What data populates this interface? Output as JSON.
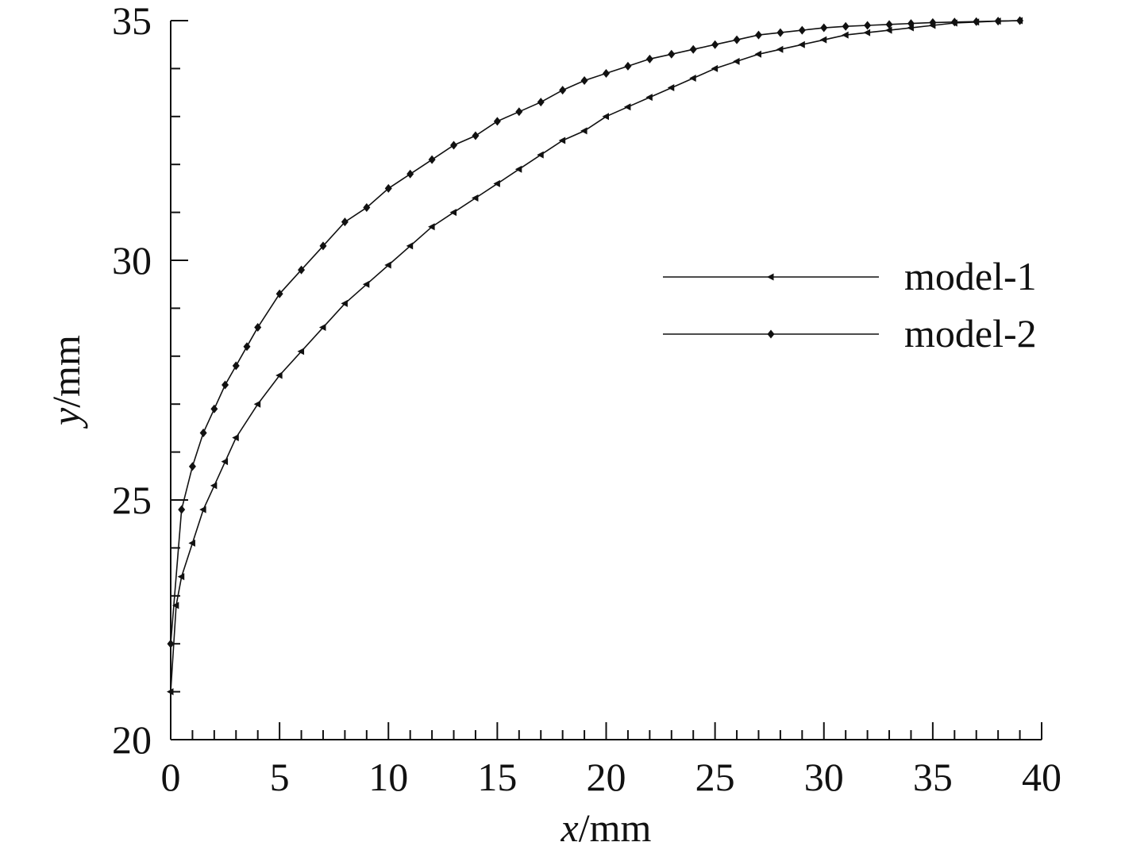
{
  "chart_data": {
    "type": "line",
    "title": "",
    "xlabel_var": "x",
    "xlabel_unit": "/mm",
    "ylabel_var": "y",
    "ylabel_unit": "/mm",
    "xlim": [
      0,
      40
    ],
    "ylim": [
      20,
      35
    ],
    "xticks": [
      "0",
      "5",
      "10",
      "15",
      "20",
      "25",
      "30",
      "35",
      "40"
    ],
    "yticks": [
      "20",
      "25",
      "30",
      "35"
    ],
    "grid": false,
    "legend_position": "center-right",
    "series": [
      {
        "name": "model-1",
        "marker": "triangle-left",
        "color": "#111111",
        "x": [
          0,
          0.25,
          0.5,
          1,
          1.5,
          2,
          2.5,
          3,
          4,
          5,
          6,
          7,
          8,
          9,
          10,
          11,
          12,
          13,
          14,
          15,
          16,
          17,
          18,
          19,
          20,
          21,
          22,
          23,
          24,
          25,
          26,
          27,
          28,
          29,
          30,
          31,
          32,
          33,
          34,
          35,
          36,
          37,
          38,
          39
        ],
        "y": [
          21,
          22.8,
          23.4,
          24.1,
          24.8,
          25.3,
          25.8,
          26.3,
          27.0,
          27.6,
          28.1,
          28.6,
          29.1,
          29.5,
          29.9,
          30.3,
          30.7,
          31.0,
          31.3,
          31.6,
          31.9,
          32.2,
          32.5,
          32.7,
          33.0,
          33.2,
          33.4,
          33.6,
          33.8,
          34.0,
          34.15,
          34.3,
          34.4,
          34.5,
          34.6,
          34.7,
          34.75,
          34.8,
          34.85,
          34.9,
          34.95,
          34.97,
          34.99,
          35.0
        ]
      },
      {
        "name": "model-2",
        "marker": "diamond",
        "color": "#111111",
        "x": [
          0,
          0.5,
          1,
          1.5,
          2,
          2.5,
          3,
          3.5,
          4,
          5,
          6,
          7,
          8,
          9,
          10,
          11,
          12,
          13,
          14,
          15,
          16,
          17,
          18,
          19,
          20,
          21,
          22,
          23,
          24,
          25,
          26,
          27,
          28,
          29,
          30,
          31,
          32,
          33,
          34,
          35,
          36,
          37,
          38,
          39
        ],
        "y": [
          22,
          24.8,
          25.7,
          26.4,
          26.9,
          27.4,
          27.8,
          28.2,
          28.6,
          29.3,
          29.8,
          30.3,
          30.8,
          31.1,
          31.5,
          31.8,
          32.1,
          32.4,
          32.6,
          32.9,
          33.1,
          33.3,
          33.55,
          33.75,
          33.9,
          34.05,
          34.2,
          34.3,
          34.4,
          34.5,
          34.6,
          34.7,
          34.75,
          34.8,
          34.85,
          34.88,
          34.9,
          34.92,
          34.94,
          34.96,
          34.97,
          34.98,
          34.99,
          35.0
        ]
      }
    ]
  }
}
